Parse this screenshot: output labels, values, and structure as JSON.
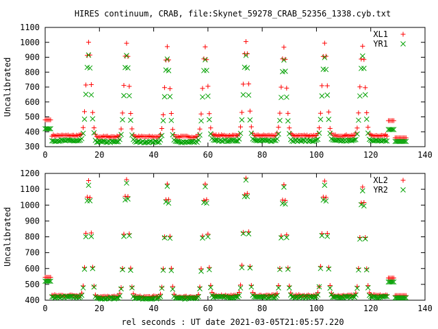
{
  "title": "HIRES continuum, CRAB, file:Skynet_59278_CRAB_52356_1338.cyb.txt",
  "colors": {
    "series1": "#ff0000",
    "series2": "#00a000",
    "axis": "#000000"
  },
  "chart_data": [
    {
      "type": "scatter",
      "title": "",
      "xlabel": "",
      "ylabel": "Uncalibrated",
      "xlim": [
        0,
        140
      ],
      "ylim": [
        300,
        1100
      ],
      "x_ticks": [
        "0",
        "20",
        "40",
        "60",
        "80",
        "100",
        "120",
        "140"
      ],
      "y_ticks": [
        "300",
        "400",
        "500",
        "600",
        "700",
        "800",
        "900",
        "1000",
        "1100"
      ],
      "legend": "top-right",
      "grid": false,
      "series": [
        {
          "name": "XL1",
          "marker": "plus",
          "color": "#ff0000",
          "baseline_low": 375,
          "peak_high": 1000,
          "start_level": 480,
          "end_level": 360
        },
        {
          "name": "YR1",
          "marker": "cross",
          "color": "#00a000",
          "baseline_low": 340,
          "peak_high": 910,
          "start_level": 420,
          "end_level": 335
        }
      ],
      "peak_x": [
        16,
        30,
        45,
        59,
        74,
        88,
        103,
        117
      ],
      "peaks_XL1": [
        1000,
        1005,
        980,
        980,
        1010,
        970,
        990,
        975
      ],
      "peaks_YR1": [
        910,
        920,
        900,
        895,
        915,
        885,
        900,
        905
      ]
    },
    {
      "type": "scatter",
      "title": "",
      "xlabel": "rel seconds : UT date 2021-03-05T21:05:57.220",
      "ylabel": "Uncalibrated",
      "xlim": [
        0,
        140
      ],
      "ylim": [
        400,
        1200
      ],
      "x_ticks": [
        "0",
        "20",
        "40",
        "60",
        "80",
        "100",
        "120",
        "140"
      ],
      "y_ticks": [
        "400",
        "500",
        "600",
        "700",
        "800",
        "900",
        "1000",
        "1100",
        "1200"
      ],
      "legend": "top-right",
      "grid": false,
      "series": [
        {
          "name": "XL2",
          "marker": "plus",
          "color": "#ff0000",
          "baseline_low": 430,
          "peak_high": 1160,
          "start_level": 545,
          "end_level": 430
        },
        {
          "name": "YR2",
          "marker": "cross",
          "color": "#00a000",
          "baseline_low": 420,
          "peak_high": 1130,
          "start_level": 520,
          "end_level": 415
        }
      ],
      "peak_x": [
        16,
        30,
        45,
        59,
        74,
        88,
        103,
        117
      ],
      "peaks_XL2": [
        1155,
        1165,
        1140,
        1140,
        1175,
        1130,
        1150,
        1110
      ],
      "peaks_YR2": [
        1130,
        1150,
        1125,
        1125,
        1155,
        1110,
        1130,
        1095
      ]
    }
  ]
}
